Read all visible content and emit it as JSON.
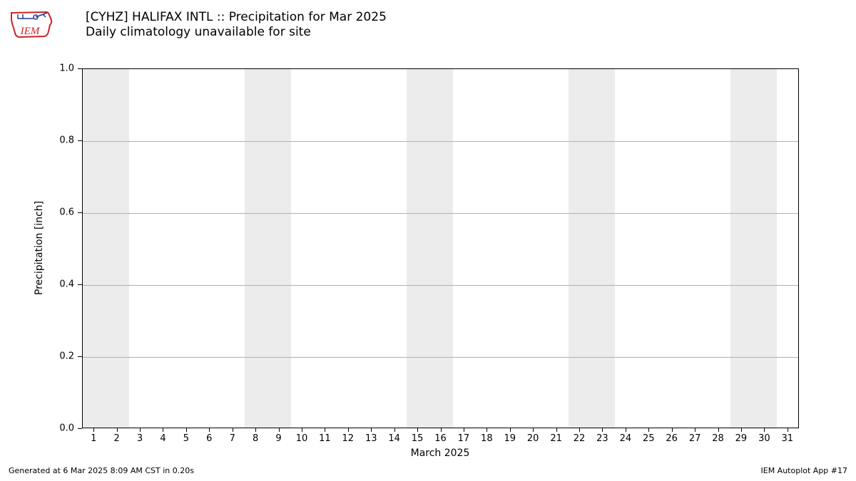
{
  "logo": {
    "label": "IEM",
    "stroke": "#ce2029",
    "accent": "#1f3a93"
  },
  "title_line1": "[CYHZ] HALIFAX INTL :: Precipitation for Mar 2025",
  "title_line2": "Daily climatology unavailable for site",
  "chart": {
    "type": "bar",
    "ylabel": "Precipitation [inch]",
    "xlabel": "March 2025",
    "ylim": [
      0.0,
      1.0
    ],
    "yticks": [
      0.0,
      0.2,
      0.4,
      0.6,
      0.8,
      1.0
    ],
    "ytick_labels": [
      "0.0",
      "0.2",
      "0.4",
      "0.6",
      "0.8",
      "1.0"
    ],
    "xlim": [
      0.5,
      31.5
    ],
    "xticks": [
      1,
      2,
      3,
      4,
      5,
      6,
      7,
      8,
      9,
      10,
      11,
      12,
      13,
      14,
      15,
      16,
      17,
      18,
      19,
      20,
      21,
      22,
      23,
      24,
      25,
      26,
      27,
      28,
      29,
      30,
      31
    ],
    "weekend_bands": [
      {
        "start": 0.5,
        "end": 2.5
      },
      {
        "start": 7.5,
        "end": 9.5
      },
      {
        "start": 14.5,
        "end": 16.5
      },
      {
        "start": 21.5,
        "end": 23.5
      },
      {
        "start": 28.5,
        "end": 30.5
      }
    ],
    "weekend_color": "#ececec",
    "grid_color": "#b0b0b0",
    "background_color": "#ffffff",
    "border_color": "#000000",
    "label_fontsize": 14,
    "tick_fontsize": 13,
    "values": []
  },
  "footer_left": "Generated at 6 Mar 2025 8:09 AM CST in 0.20s",
  "footer_right": "IEM Autoplot App #17"
}
